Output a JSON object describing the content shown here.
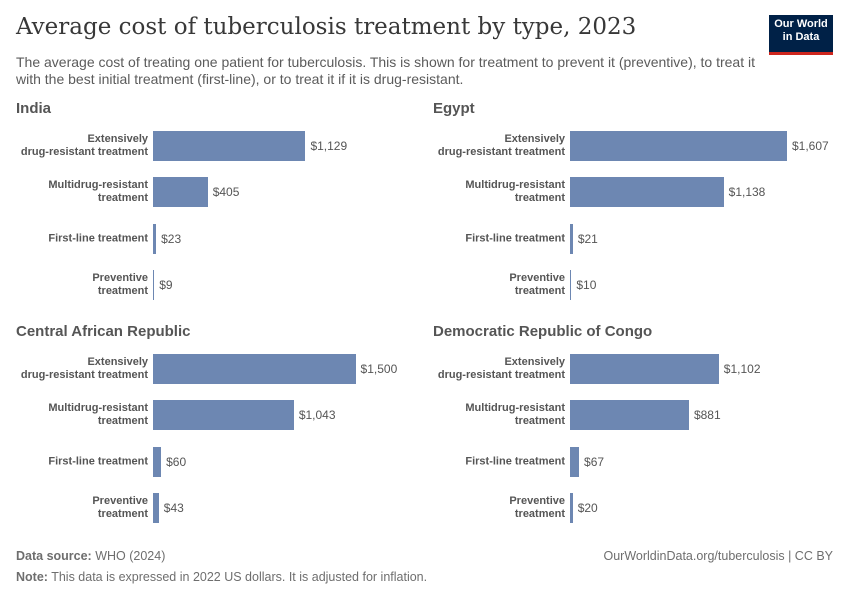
{
  "header": {
    "title": "Average cost of tuberculosis treatment by type, 2023",
    "subtitle": "The average cost of treating one patient for tuberculosis. This is shown for treatment to prevent it (preventive), to treat it with the best initial treatment (first-line), or to treat it if it is drug-resistant.",
    "logo": "Our World\nin Data"
  },
  "chart_data": [
    {
      "type": "bar",
      "title": "India",
      "color": "#6d87b2",
      "categories": [
        "Extensively\ndrug-resistant treatment",
        "Multidrug-resistant\ntreatment",
        "First-line treatment",
        "Preventive\ntreatment"
      ],
      "values": [
        1129,
        405,
        23,
        9
      ],
      "value_labels": [
        "$1,129",
        "$405",
        "$23",
        "$9"
      ]
    },
    {
      "type": "bar",
      "title": "Egypt",
      "color": "#6d87b2",
      "categories": [
        "Extensively\ndrug-resistant treatment",
        "Multidrug-resistant\ntreatment",
        "First-line treatment",
        "Preventive\ntreatment"
      ],
      "values": [
        1607,
        1138,
        21,
        10
      ],
      "value_labels": [
        "$1,607",
        "$1,138",
        "$21",
        "$10"
      ]
    },
    {
      "type": "bar",
      "title": "Central African Republic",
      "color": "#6d87b2",
      "categories": [
        "Extensively\ndrug-resistant treatment",
        "Multidrug-resistant\ntreatment",
        "First-line treatment",
        "Preventive\ntreatment"
      ],
      "values": [
        1500,
        1043,
        60,
        43
      ],
      "value_labels": [
        "$1,500",
        "$1,043",
        "$60",
        "$43"
      ]
    },
    {
      "type": "bar",
      "title": "Democratic Republic of Congo",
      "color": "#6d87b2",
      "categories": [
        "Extensively\ndrug-resistant treatment",
        "Multidrug-resistant\ntreatment",
        "First-line treatment",
        "Preventive\ntreatment"
      ],
      "values": [
        1102,
        881,
        67,
        20
      ],
      "value_labels": [
        "$1,102",
        "$881",
        "$67",
        "$20"
      ]
    }
  ],
  "footer": {
    "source_label": "Data source:",
    "source": "WHO (2024)",
    "url": "OurWorldinData.org/tuberculosis | CC BY",
    "note_label": "Note:",
    "note": "This data is expressed in 2022 US dollars. It is adjusted for inflation."
  }
}
